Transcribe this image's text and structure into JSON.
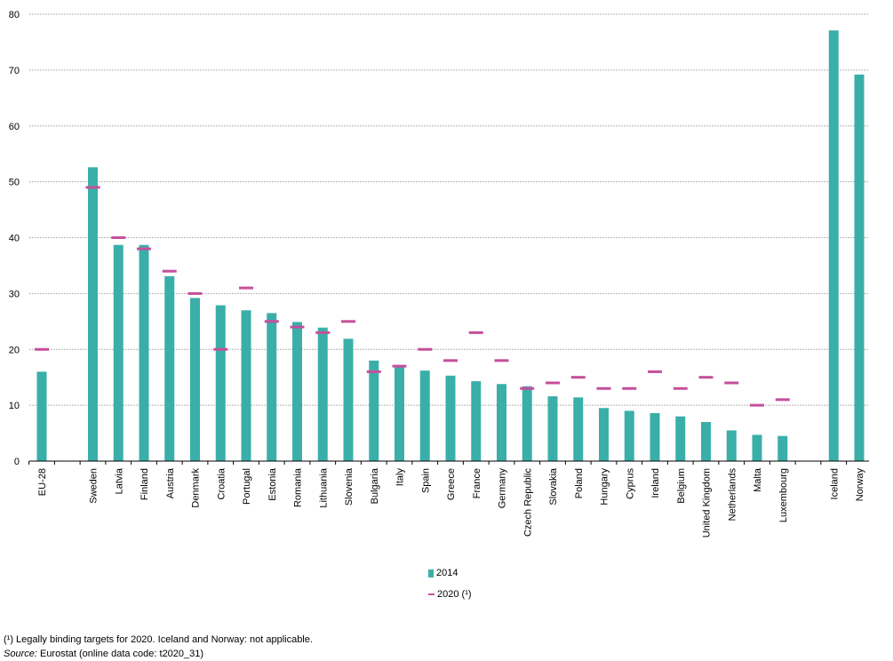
{
  "chart_data": {
    "type": "bar",
    "categories": [
      "EU-28",
      "Sweden",
      "Latvia",
      "Finland",
      "Austria",
      "Denmark",
      "Croatia",
      "Portugal",
      "Estonia",
      "Romania",
      "Lithuania",
      "Slovenia",
      "Bulgaria",
      "Italy",
      "Spain",
      "Greece",
      "France",
      "Germany",
      "Czech Republic",
      "Slovakia",
      "Poland",
      "Hungary",
      "Cyprus",
      "Ireland",
      "Belgium",
      "United Kingdom",
      "Netherlands",
      "Malta",
      "Luxembourg",
      "Iceland",
      "Norway"
    ],
    "series": [
      {
        "name": "2014",
        "type": "bar",
        "color": "#3aafa9",
        "values": [
          16.0,
          52.6,
          38.7,
          38.7,
          33.1,
          29.2,
          27.9,
          27.0,
          26.5,
          24.9,
          23.9,
          21.9,
          18.0,
          17.1,
          16.2,
          15.3,
          14.3,
          13.8,
          13.4,
          11.6,
          11.4,
          9.5,
          9.0,
          8.6,
          8.0,
          7.0,
          5.5,
          4.7,
          4.5,
          77.1,
          69.2
        ]
      },
      {
        "name": "2020 (¹)",
        "type": "marker",
        "color": "#c64f9c",
        "values": [
          20,
          49,
          40,
          38,
          34,
          30,
          20,
          31,
          25,
          24,
          23,
          25,
          16,
          17,
          20,
          18,
          23,
          18,
          13,
          14,
          15,
          13,
          13,
          16,
          13,
          15,
          14,
          10,
          11,
          null,
          null
        ]
      }
    ],
    "ylim": [
      0,
      80
    ],
    "yticks": [
      0,
      10,
      20,
      30,
      40,
      50,
      60,
      70,
      80
    ],
    "grid": true,
    "legend_position": "bottom-center"
  },
  "legend": {
    "bar_label": "2014",
    "marker_label": "2020 (¹)"
  },
  "notes": {
    "footnote": "(¹) Legally binding targets for 2020. Iceland and Norway: not applicable.",
    "source_label": "Source:",
    "source_text": " Eurostat (online data code: t2020_31)"
  }
}
